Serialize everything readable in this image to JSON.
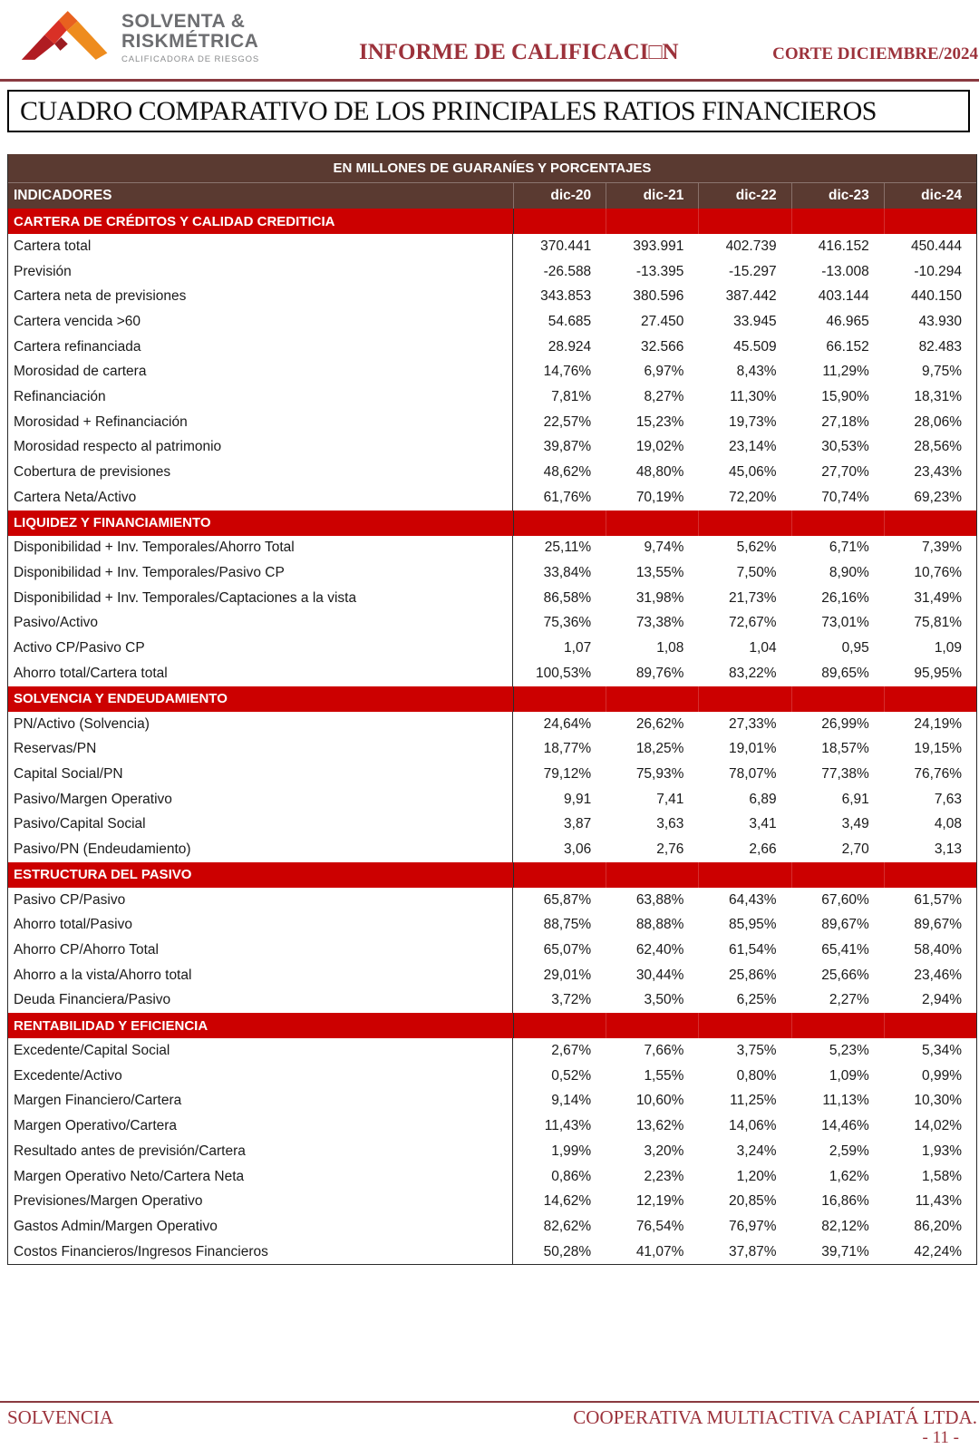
{
  "header": {
    "logo": {
      "line1": "SOLVENTA &",
      "line2": "RISKMÉTRICA",
      "tagline": "CALIFICADORA DE RIESGOS"
    },
    "report_title": "INFORME DE CALIFICACI□N",
    "corte": "CORTE DICIEMBRE/2024"
  },
  "page_title": "CUADRO COMPARATIVO DE LOS PRINCIPALES RATIOS FINANCIEROS",
  "table": {
    "caption": "EN MILLONES DE GUARANÍES Y PORCENTAJES",
    "indicator_header": "INDICADORES",
    "columns": [
      "dic-20",
      "dic-21",
      "dic-22",
      "dic-23",
      "dic-24"
    ],
    "sections": [
      {
        "title": "CARTERA DE CRÉDITOS Y CALIDAD CREDITICIA",
        "rows": [
          {
            "label": "Cartera total",
            "values": [
              "370.441",
              "393.991",
              "402.739",
              "416.152",
              "450.444"
            ]
          },
          {
            "label": "Previsión",
            "values": [
              "-26.588",
              "-13.395",
              "-15.297",
              "-13.008",
              "-10.294"
            ]
          },
          {
            "label": "Cartera neta de previsiones",
            "values": [
              "343.853",
              "380.596",
              "387.442",
              "403.144",
              "440.150"
            ]
          },
          {
            "label": "Cartera vencida >60",
            "values": [
              "54.685",
              "27.450",
              "33.945",
              "46.965",
              "43.930"
            ]
          },
          {
            "label": "Cartera refinanciada",
            "values": [
              "28.924",
              "32.566",
              "45.509",
              "66.152",
              "82.483"
            ]
          },
          {
            "label": "Morosidad de cartera",
            "values": [
              "14,76%",
              "6,97%",
              "8,43%",
              "11,29%",
              "9,75%"
            ]
          },
          {
            "label": "Refinanciación",
            "values": [
              "7,81%",
              "8,27%",
              "11,30%",
              "15,90%",
              "18,31%"
            ]
          },
          {
            "label": "Morosidad + Refinanciación",
            "values": [
              "22,57%",
              "15,23%",
              "19,73%",
              "27,18%",
              "28,06%"
            ]
          },
          {
            "label": "Morosidad respecto al patrimonio",
            "values": [
              "39,87%",
              "19,02%",
              "23,14%",
              "30,53%",
              "28,56%"
            ]
          },
          {
            "label": "Cobertura de previsiones",
            "values": [
              "48,62%",
              "48,80%",
              "45,06%",
              "27,70%",
              "23,43%"
            ]
          },
          {
            "label": "Cartera Neta/Activo",
            "values": [
              "61,76%",
              "70,19%",
              "72,20%",
              "70,74%",
              "69,23%"
            ]
          }
        ]
      },
      {
        "title": "LIQUIDEZ Y FINANCIAMIENTO",
        "rows": [
          {
            "label": "Disponibilidad + Inv. Temporales/Ahorro Total",
            "values": [
              "25,11%",
              "9,74%",
              "5,62%",
              "6,71%",
              "7,39%"
            ]
          },
          {
            "label": "Disponibilidad + Inv. Temporales/Pasivo CP",
            "values": [
              "33,84%",
              "13,55%",
              "7,50%",
              "8,90%",
              "10,76%"
            ]
          },
          {
            "label": "Disponibilidad + Inv. Temporales/Captaciones a la vista",
            "values": [
              "86,58%",
              "31,98%",
              "21,73%",
              "26,16%",
              "31,49%"
            ]
          },
          {
            "label": "Pasivo/Activo",
            "values": [
              "75,36%",
              "73,38%",
              "72,67%",
              "73,01%",
              "75,81%"
            ]
          },
          {
            "label": "Activo CP/Pasivo CP",
            "values": [
              "1,07",
              "1,08",
              "1,04",
              "0,95",
              "1,09"
            ]
          },
          {
            "label": "Ahorro total/Cartera total",
            "values": [
              "100,53%",
              "89,76%",
              "83,22%",
              "89,65%",
              "95,95%"
            ]
          }
        ]
      },
      {
        "title": "SOLVENCIA Y ENDEUDAMIENTO",
        "rows": [
          {
            "label": "PN/Activo (Solvencia)",
            "values": [
              "24,64%",
              "26,62%",
              "27,33%",
              "26,99%",
              "24,19%"
            ]
          },
          {
            "label": "Reservas/PN",
            "values": [
              "18,77%",
              "18,25%",
              "19,01%",
              "18,57%",
              "19,15%"
            ]
          },
          {
            "label": "Capital Social/PN",
            "values": [
              "79,12%",
              "75,93%",
              "78,07%",
              "77,38%",
              "76,76%"
            ]
          },
          {
            "label": "Pasivo/Margen Operativo",
            "values": [
              "9,91",
              "7,41",
              "6,89",
              "6,91",
              "7,63"
            ]
          },
          {
            "label": "Pasivo/Capital Social",
            "values": [
              "3,87",
              "3,63",
              "3,41",
              "3,49",
              "4,08"
            ]
          },
          {
            "label": "Pasivo/PN (Endeudamiento)",
            "values": [
              "3,06",
              "2,76",
              "2,66",
              "2,70",
              "3,13"
            ]
          }
        ]
      },
      {
        "title": "ESTRUCTURA DEL PASIVO",
        "rows": [
          {
            "label": "Pasivo CP/Pasivo",
            "values": [
              "65,87%",
              "63,88%",
              "64,43%",
              "67,60%",
              "61,57%"
            ]
          },
          {
            "label": "Ahorro total/Pasivo",
            "values": [
              "88,75%",
              "88,88%",
              "85,95%",
              "89,67%",
              "89,67%"
            ]
          },
          {
            "label": "Ahorro CP/Ahorro Total",
            "values": [
              "65,07%",
              "62,40%",
              "61,54%",
              "65,41%",
              "58,40%"
            ]
          },
          {
            "label": "Ahorro a la vista/Ahorro total",
            "values": [
              "29,01%",
              "30,44%",
              "25,86%",
              "25,66%",
              "23,46%"
            ]
          },
          {
            "label": "Deuda Financiera/Pasivo",
            "values": [
              "3,72%",
              "3,50%",
              "6,25%",
              "2,27%",
              "2,94%"
            ]
          }
        ]
      },
      {
        "title": "RENTABILIDAD Y EFICIENCIA",
        "rows": [
          {
            "label": "Excedente/Capital Social",
            "values": [
              "2,67%",
              "7,66%",
              "3,75%",
              "5,23%",
              "5,34%"
            ]
          },
          {
            "label": "Excedente/Activo",
            "values": [
              "0,52%",
              "1,55%",
              "0,80%",
              "1,09%",
              "0,99%"
            ]
          },
          {
            "label": "Margen Financiero/Cartera",
            "values": [
              "9,14%",
              "10,60%",
              "11,25%",
              "11,13%",
              "10,30%"
            ]
          },
          {
            "label": "Margen Operativo/Cartera",
            "values": [
              "11,43%",
              "13,62%",
              "14,06%",
              "14,46%",
              "14,02%"
            ]
          },
          {
            "label": "Resultado antes de previsión/Cartera",
            "values": [
              "1,99%",
              "3,20%",
              "3,24%",
              "2,59%",
              "1,93%"
            ]
          },
          {
            "label": "Margen Operativo Neto/Cartera Neta",
            "values": [
              "0,86%",
              "2,23%",
              "1,20%",
              "1,62%",
              "1,58%"
            ]
          },
          {
            "label": "Previsiones/Margen Operativo",
            "values": [
              "14,62%",
              "12,19%",
              "20,85%",
              "16,86%",
              "11,43%"
            ]
          },
          {
            "label": "Gastos Admin/Margen Operativo",
            "values": [
              "82,62%",
              "76,54%",
              "76,97%",
              "82,12%",
              "86,20%"
            ]
          },
          {
            "label": "Costos Financieros/Ingresos Financieros",
            "values": [
              "50,28%",
              "41,07%",
              "37,87%",
              "39,71%",
              "42,24%"
            ]
          }
        ]
      }
    ]
  },
  "footer": {
    "left": "SOLVENCIA",
    "right": "COOPERATIVA MULTIACTIVA CAPIATÁ LTDA.",
    "page": "- 11 -"
  },
  "colors": {
    "section_red": "#cc0000",
    "header_brown": "#5a3a31",
    "maroon_text": "#9c323b"
  }
}
